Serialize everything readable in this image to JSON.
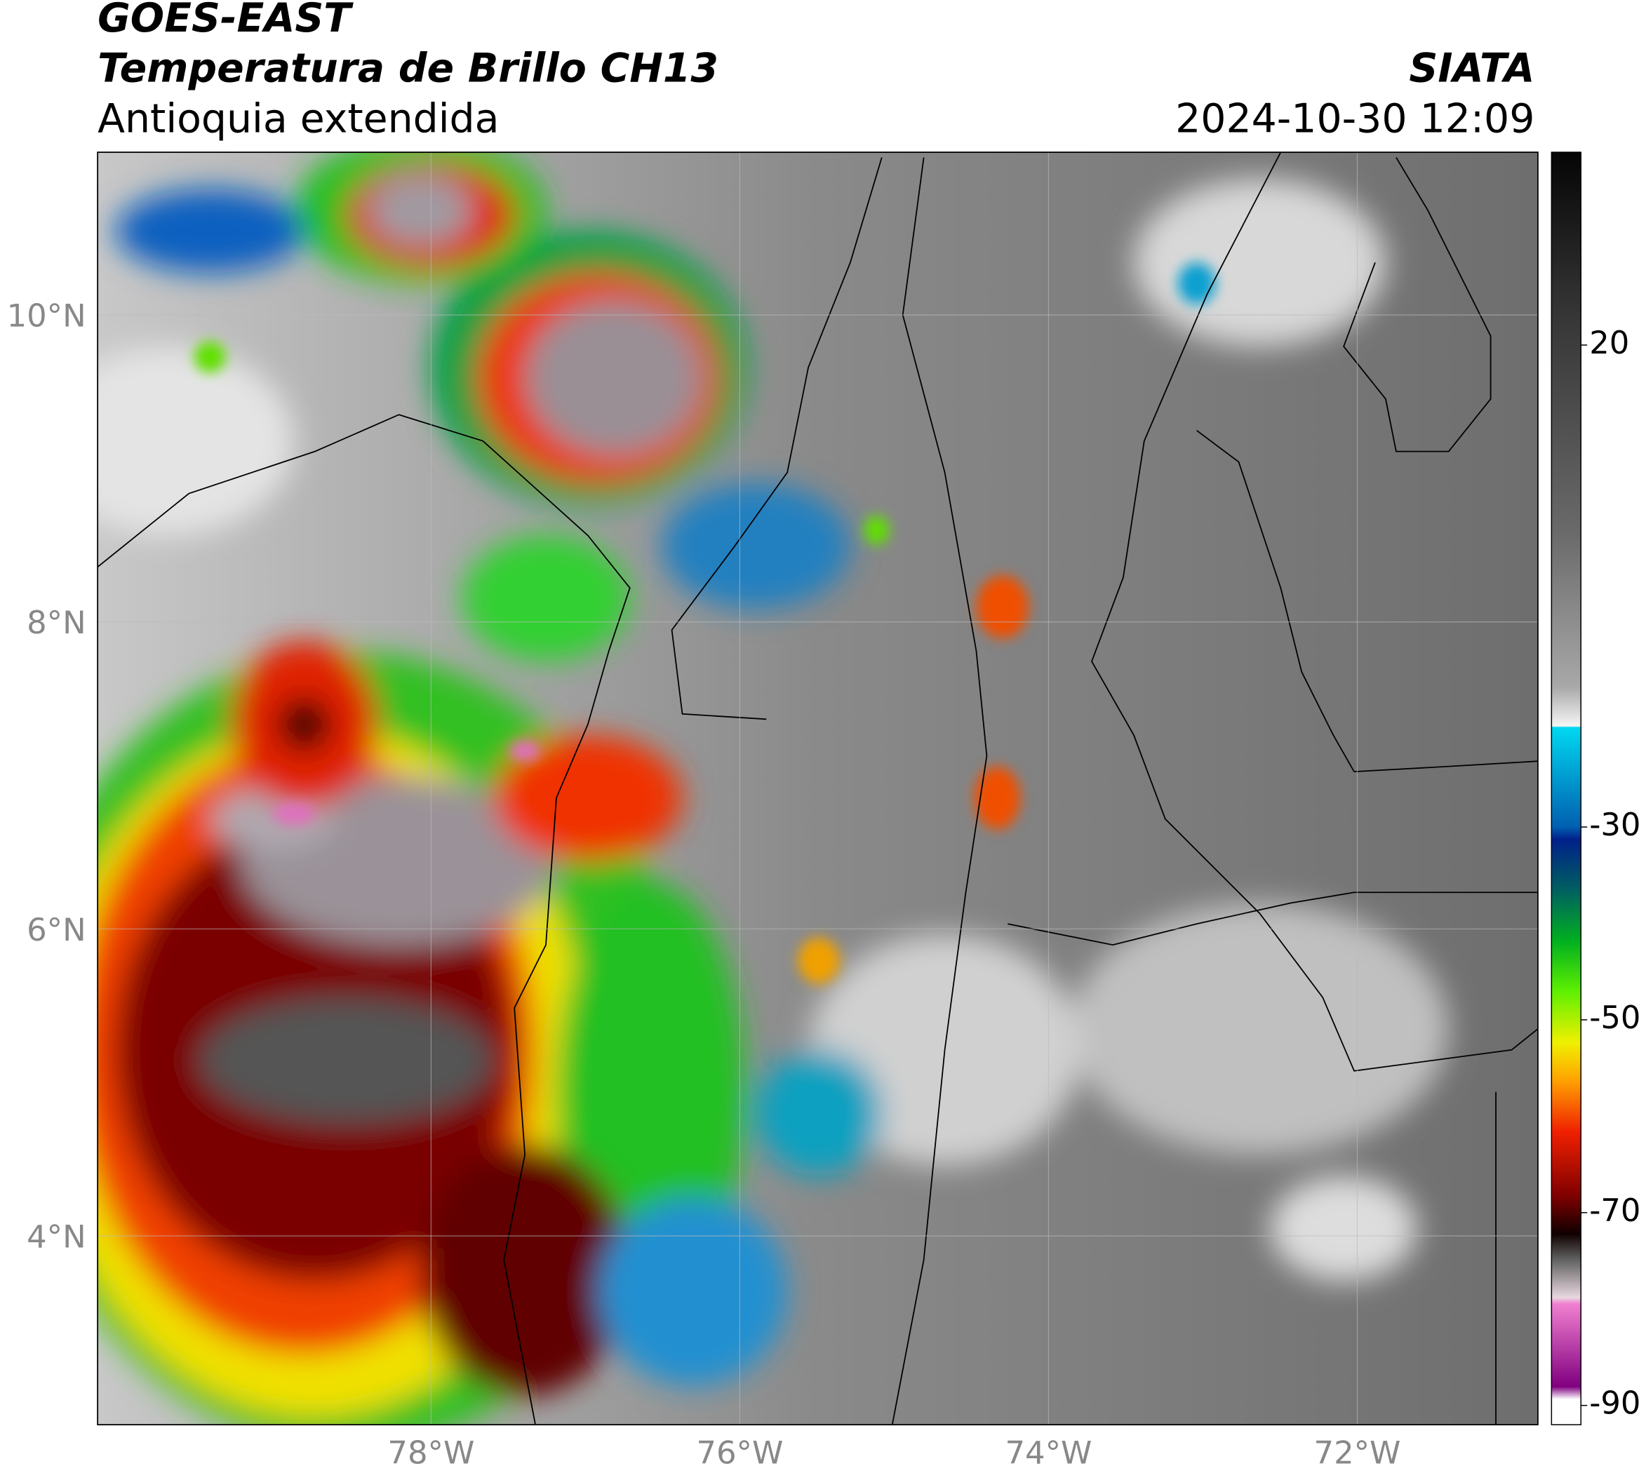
{
  "header": {
    "satellite": "GOES-EAST",
    "product": "Temperatura de Brillo CH13",
    "region": "Antioquia extendida",
    "agency": "SIATA",
    "timestamp": "2024-10-30 12:09"
  },
  "map": {
    "xlim": [
      -80.16,
      -70.83
    ],
    "ylim": [
      2.77,
      11.06
    ],
    "lat_ticks": [
      {
        "value": 10,
        "label": "10°N"
      },
      {
        "value": 8,
        "label": "8°N"
      },
      {
        "value": 6,
        "label": "6°N"
      },
      {
        "value": 4,
        "label": "4°N"
      }
    ],
    "lon_ticks": [
      {
        "value": -78,
        "label": "78°W"
      },
      {
        "value": -76,
        "label": "76°W"
      },
      {
        "value": -74,
        "label": "74°W"
      },
      {
        "value": -72,
        "label": "72°W"
      }
    ]
  },
  "colorbar": {
    "range": [
      -92,
      40
    ],
    "ticks": [
      20,
      -30,
      -50,
      -70,
      -90
    ]
  }
}
